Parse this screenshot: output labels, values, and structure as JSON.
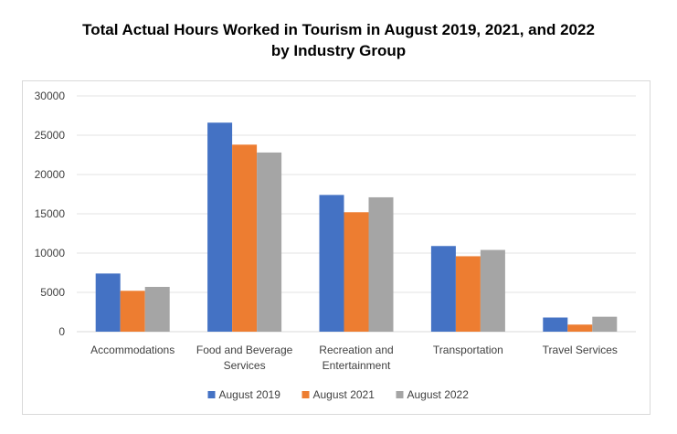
{
  "chart_data": {
    "type": "bar",
    "title": "Total Actual Hours Worked in Tourism in August 2019, 2021, and 2022",
    "subtitle": "by Industry Group",
    "xlabel": "",
    "ylabel": "",
    "ylim": [
      0,
      30000
    ],
    "yticks": [
      0,
      5000,
      10000,
      15000,
      20000,
      25000,
      30000
    ],
    "grid": true,
    "legend_position": "bottom",
    "categories": [
      [
        "Accommodations"
      ],
      [
        "Food and Beverage",
        "Services"
      ],
      [
        "Recreation and",
        "Entertainment"
      ],
      [
        "Transportation"
      ],
      [
        "Travel Services"
      ]
    ],
    "series": [
      {
        "name": "August 2019",
        "color": "#4472c4",
        "values": [
          7400,
          26600,
          17400,
          10900,
          1800
        ]
      },
      {
        "name": "August 2021",
        "color": "#ed7d31",
        "values": [
          5200,
          23800,
          15200,
          9600,
          900
        ]
      },
      {
        "name": "August 2022",
        "color": "#a5a5a5",
        "values": [
          5700,
          22800,
          17100,
          10400,
          1900
        ]
      }
    ]
  }
}
